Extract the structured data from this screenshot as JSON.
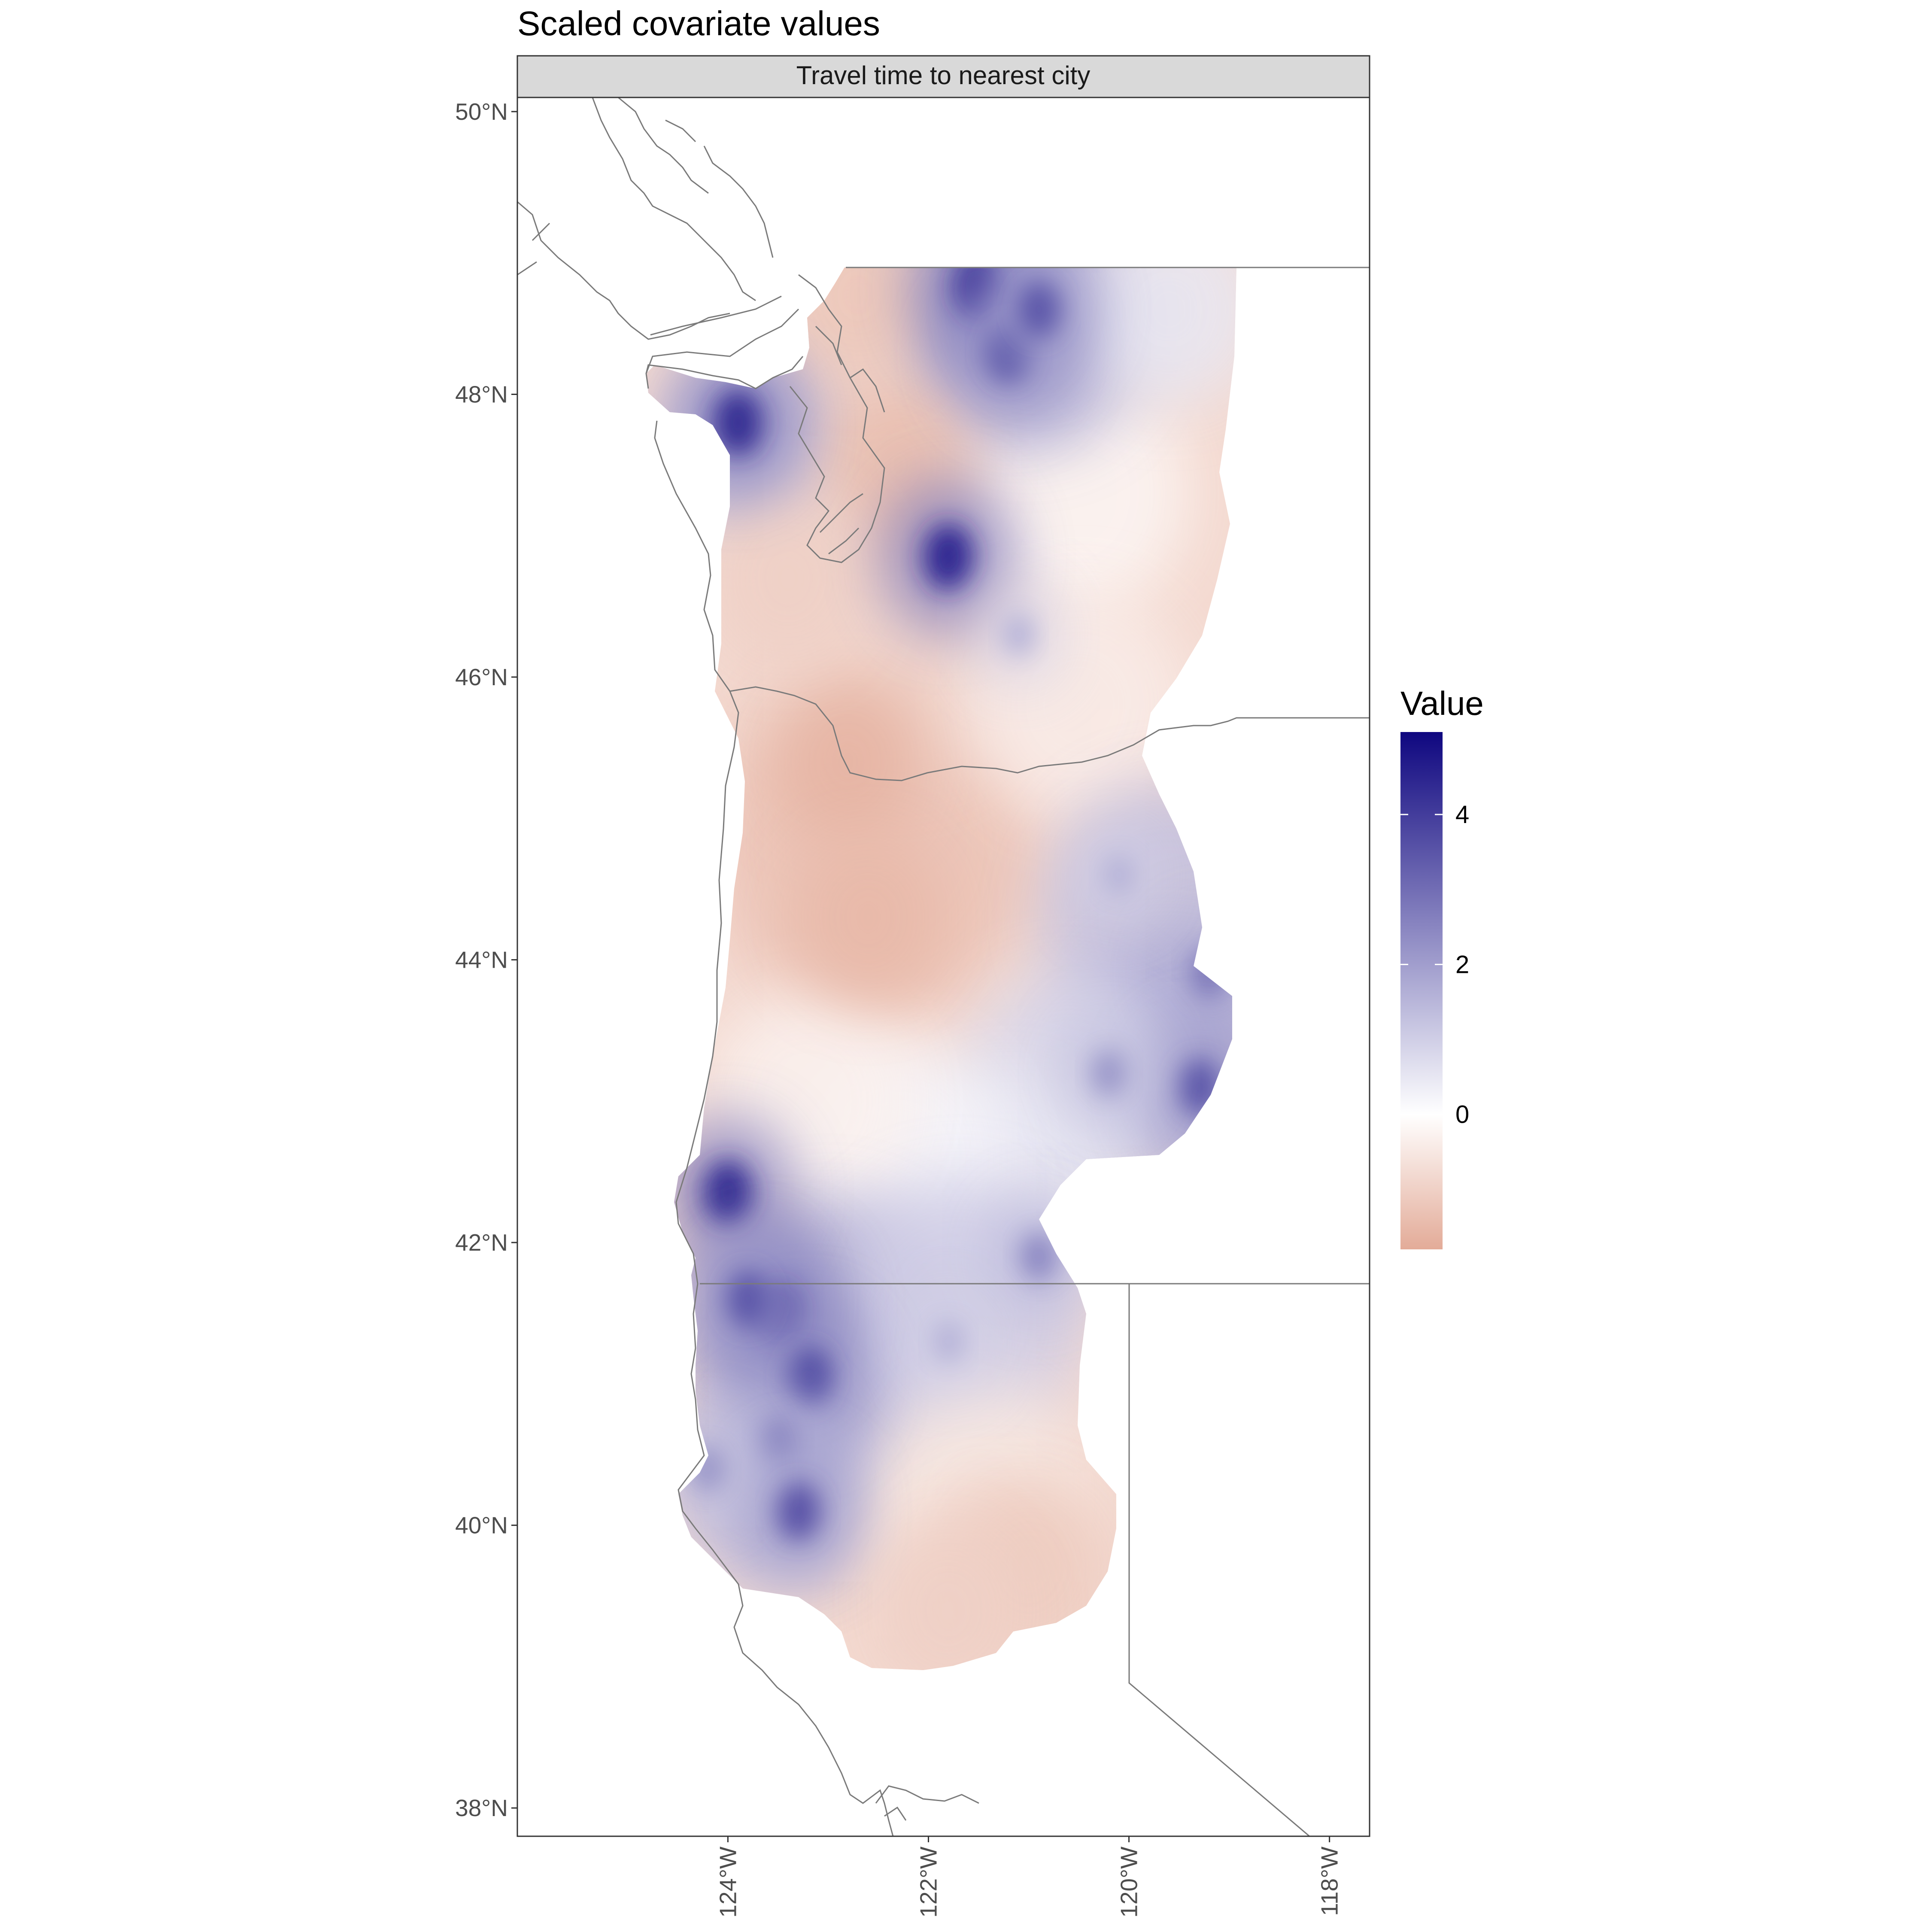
{
  "title": "Scaled covariate values",
  "facet_label": "Travel time to nearest city",
  "legend": {
    "title": "Value",
    "ticks": [
      {
        "value": 4,
        "label": "4"
      },
      {
        "value": 2,
        "label": "2"
      },
      {
        "value": 0,
        "label": "0"
      }
    ],
    "range": [
      -1.8,
      5.1
    ],
    "colors": {
      "low": "#e3ab98",
      "mid": "#ffffff",
      "high": "#0f0780"
    }
  },
  "axes": {
    "lat_ticks": [
      {
        "value": 50,
        "label": "50°N"
      },
      {
        "value": 48,
        "label": "48°N"
      },
      {
        "value": 46,
        "label": "46°N"
      },
      {
        "value": 44,
        "label": "44°N"
      },
      {
        "value": 42,
        "label": "42°N"
      },
      {
        "value": 40,
        "label": "40°N"
      },
      {
        "value": 38,
        "label": "38°N"
      }
    ],
    "lon_ticks": [
      {
        "value": -124,
        "label": "124°W"
      },
      {
        "value": -122,
        "label": "122°W"
      },
      {
        "value": -120,
        "label": "120°W"
      },
      {
        "value": -118,
        "label": "118°W"
      }
    ]
  },
  "chart_data": {
    "type": "heatmap",
    "title": "Scaled covariate values",
    "facet": "Travel time to nearest city",
    "legend_title": "Value",
    "xlim": [
      -126.1,
      -117.6
    ],
    "ylim": [
      37.8,
      50.1
    ],
    "value_range": [
      -1.8,
      5.1
    ],
    "grid": false,
    "legend_position": "right",
    "hotspots": [
      {
        "lon": -121.5,
        "lat": 48.75,
        "value": 4.6
      },
      {
        "lon": -121.2,
        "lat": 48.3,
        "value": 3.8
      },
      {
        "lon": -120.9,
        "lat": 48.6,
        "value": 3.5
      },
      {
        "lon": -123.9,
        "lat": 47.8,
        "value": 4.4
      },
      {
        "lon": -121.8,
        "lat": 46.85,
        "value": 4.5
      },
      {
        "lon": -121.1,
        "lat": 46.3,
        "value": 1.6
      },
      {
        "lon": -119.2,
        "lat": 43.9,
        "value": 2.8
      },
      {
        "lon": -119.3,
        "lat": 43.1,
        "value": 3.5
      },
      {
        "lon": -120.2,
        "lat": 43.2,
        "value": 2.2
      },
      {
        "lon": -120.1,
        "lat": 44.6,
        "value": 1.6
      },
      {
        "lon": -124.0,
        "lat": 42.35,
        "value": 4.4
      },
      {
        "lon": -123.5,
        "lat": 41.5,
        "value": 4.6
      },
      {
        "lon": -123.2,
        "lat": 41.05,
        "value": 4.0
      },
      {
        "lon": -123.8,
        "lat": 41.6,
        "value": 3.5
      },
      {
        "lon": -123.5,
        "lat": 40.6,
        "value": 2.6
      },
      {
        "lon": -123.3,
        "lat": 40.1,
        "value": 3.6
      },
      {
        "lon": -120.9,
        "lat": 41.9,
        "value": 2.5
      },
      {
        "lon": -121.8,
        "lat": 41.3,
        "value": 1.6
      },
      {
        "lon": -124.2,
        "lat": 40.4,
        "value": 2.2
      }
    ],
    "coldspots": [
      {
        "lon": -122.8,
        "lat": 45.4,
        "value": -1.6
      },
      {
        "lon": -122.6,
        "lat": 44.3,
        "value": -1.5
      },
      {
        "lon": -122.3,
        "lat": 47.5,
        "value": -1.4
      },
      {
        "lon": -122.7,
        "lat": 48.7,
        "value": -1.2
      },
      {
        "lon": -121.0,
        "lat": 39.7,
        "value": -1.1
      },
      {
        "lon": -123.4,
        "lat": 46.7,
        "value": -1.0
      },
      {
        "lon": -121.8,
        "lat": 39.4,
        "value": -1.0
      }
    ]
  }
}
